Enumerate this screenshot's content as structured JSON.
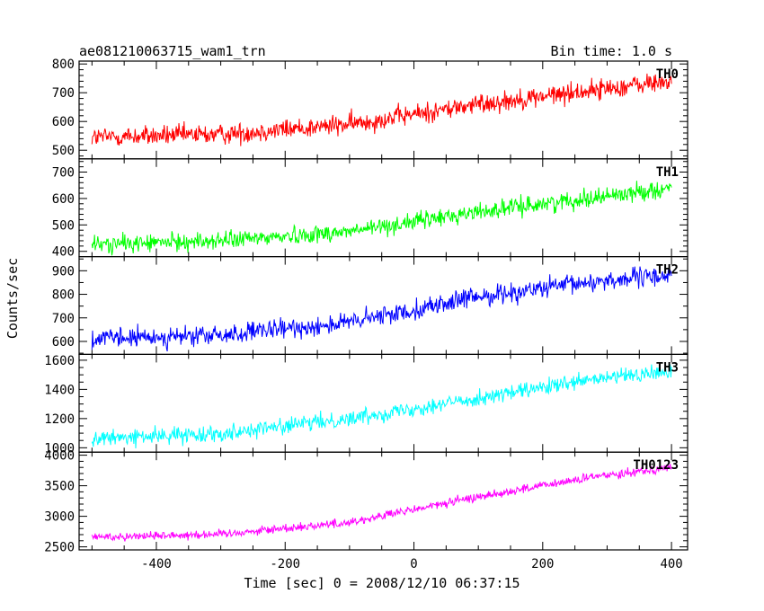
{
  "title_left": "ae081210063715_wam1_trn",
  "title_right": "Bin time: 1.0 s",
  "ylabel": "Counts/sec",
  "xlabel": "Time [sec] 0 = 2008/12/10 06:37:15",
  "chart_data": {
    "type": "line",
    "x_range": [
      -500,
      400
    ],
    "xlim": [
      -520,
      425
    ],
    "x_ticks": [
      -400,
      -200,
      0,
      200,
      400
    ],
    "bin_time_s": 1.0,
    "panels": [
      {
        "name": "TH0",
        "color": "#ff0000",
        "ylim": [
          470,
          810
        ],
        "y_ticks": [
          500,
          600,
          700,
          800
        ],
        "trend_points": [
          [
            -500,
            545
          ],
          [
            -300,
            555
          ],
          [
            -100,
            590
          ],
          [
            100,
            660
          ],
          [
            300,
            715
          ],
          [
            400,
            740
          ]
        ],
        "noise": 30
      },
      {
        "name": "TH1",
        "color": "#00ff00",
        "ylim": [
          380,
          750
        ],
        "y_ticks": [
          400,
          500,
          600,
          700
        ],
        "trend_points": [
          [
            -500,
            425
          ],
          [
            -300,
            440
          ],
          [
            -100,
            475
          ],
          [
            100,
            550
          ],
          [
            300,
            610
          ],
          [
            400,
            640
          ]
        ],
        "noise": 28
      },
      {
        "name": "TH2",
        "color": "#0000ff",
        "ylim": [
          545,
          960
        ],
        "y_ticks": [
          600,
          700,
          800,
          900
        ],
        "trend_points": [
          [
            -500,
            610
          ],
          [
            -300,
            625
          ],
          [
            -100,
            680
          ],
          [
            100,
            790
          ],
          [
            300,
            860
          ],
          [
            400,
            880
          ]
        ],
        "noise": 35
      },
      {
        "name": "TH3",
        "color": "#00ffff",
        "ylim": [
          970,
          1640
        ],
        "y_ticks": [
          1000,
          1200,
          1400,
          1600
        ],
        "trend_points": [
          [
            -500,
            1060
          ],
          [
            -300,
            1100
          ],
          [
            -100,
            1200
          ],
          [
            100,
            1340
          ],
          [
            300,
            1480
          ],
          [
            400,
            1520
          ]
        ],
        "noise": 45
      },
      {
        "name": "TH0123",
        "color": "#ff00ff",
        "ylim": [
          2450,
          4050
        ],
        "y_ticks": [
          2500,
          3000,
          3500,
          4000
        ],
        "trend_points": [
          [
            -500,
            2660
          ],
          [
            -300,
            2710
          ],
          [
            -100,
            2900
          ],
          [
            100,
            3320
          ],
          [
            300,
            3680
          ],
          [
            400,
            3800
          ]
        ],
        "noise": 60
      }
    ]
  }
}
